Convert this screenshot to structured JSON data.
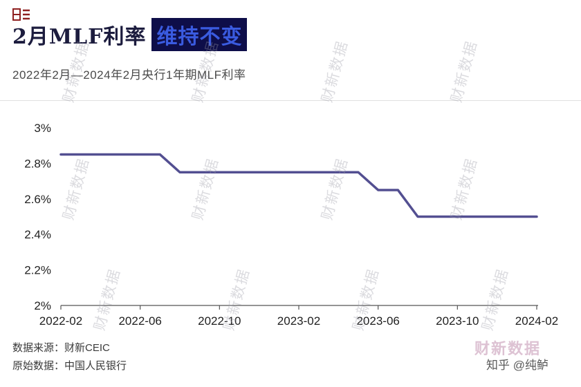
{
  "header": {
    "title_prefix": "2月MLF利率",
    "title_highlight": "维持不变",
    "subtitle": "2022年2月—2024年2月央行1年期MLF利率"
  },
  "chart_data": {
    "type": "line",
    "title": "2月MLF利率 维持不变",
    "subtitle": "2022年2月—2024年2月央行1年期MLF利率",
    "xlabel": "",
    "ylabel": "",
    "ylim": [
      2,
      3
    ],
    "grid": false,
    "legend": false,
    "line_color": "#534f91",
    "x": [
      "2022-02",
      "2022-03",
      "2022-04",
      "2022-05",
      "2022-06",
      "2022-07",
      "2022-08",
      "2022-09",
      "2022-10",
      "2022-11",
      "2022-12",
      "2023-01",
      "2023-02",
      "2023-03",
      "2023-04",
      "2023-05",
      "2023-06",
      "2023-07",
      "2023-08",
      "2023-09",
      "2023-10",
      "2023-11",
      "2023-12",
      "2024-01",
      "2024-02"
    ],
    "series": [
      {
        "name": "央行1年期MLF利率",
        "values": [
          2.85,
          2.85,
          2.85,
          2.85,
          2.85,
          2.85,
          2.75,
          2.75,
          2.75,
          2.75,
          2.75,
          2.75,
          2.75,
          2.75,
          2.75,
          2.75,
          2.65,
          2.65,
          2.5,
          2.5,
          2.5,
          2.5,
          2.5,
          2.5,
          2.5
        ]
      }
    ],
    "yticks": [
      {
        "value": 3,
        "label": "3%"
      },
      {
        "value": 2.8,
        "label": "2.8%"
      },
      {
        "value": 2.6,
        "label": "2.6%"
      },
      {
        "value": 2.4,
        "label": "2.4%"
      },
      {
        "value": 2.2,
        "label": "2.2%"
      },
      {
        "value": 2,
        "label": "2%"
      }
    ],
    "xticks": [
      {
        "index": 0,
        "label": "2022-02"
      },
      {
        "index": 4,
        "label": "2022-06"
      },
      {
        "index": 8,
        "label": "2022-10"
      },
      {
        "index": 12,
        "label": "2023-02"
      },
      {
        "index": 16,
        "label": "2023-06"
      },
      {
        "index": 20,
        "label": "2023-10"
      },
      {
        "index": 24,
        "label": "2024-02"
      }
    ]
  },
  "footer": {
    "source_line1": "数据来源：财新CEIC",
    "source_line2": "原始数据：中国人民银行",
    "brand": "财新数据",
    "credit": "知乎 @纯鲈"
  },
  "watermark": {
    "text": "财新数据"
  },
  "colors": {
    "line": "#534f91",
    "title": "#1c1c3e",
    "highlight_bg": "#0e0e49",
    "highlight_text": "#3a5be0",
    "axis": "#555555"
  }
}
